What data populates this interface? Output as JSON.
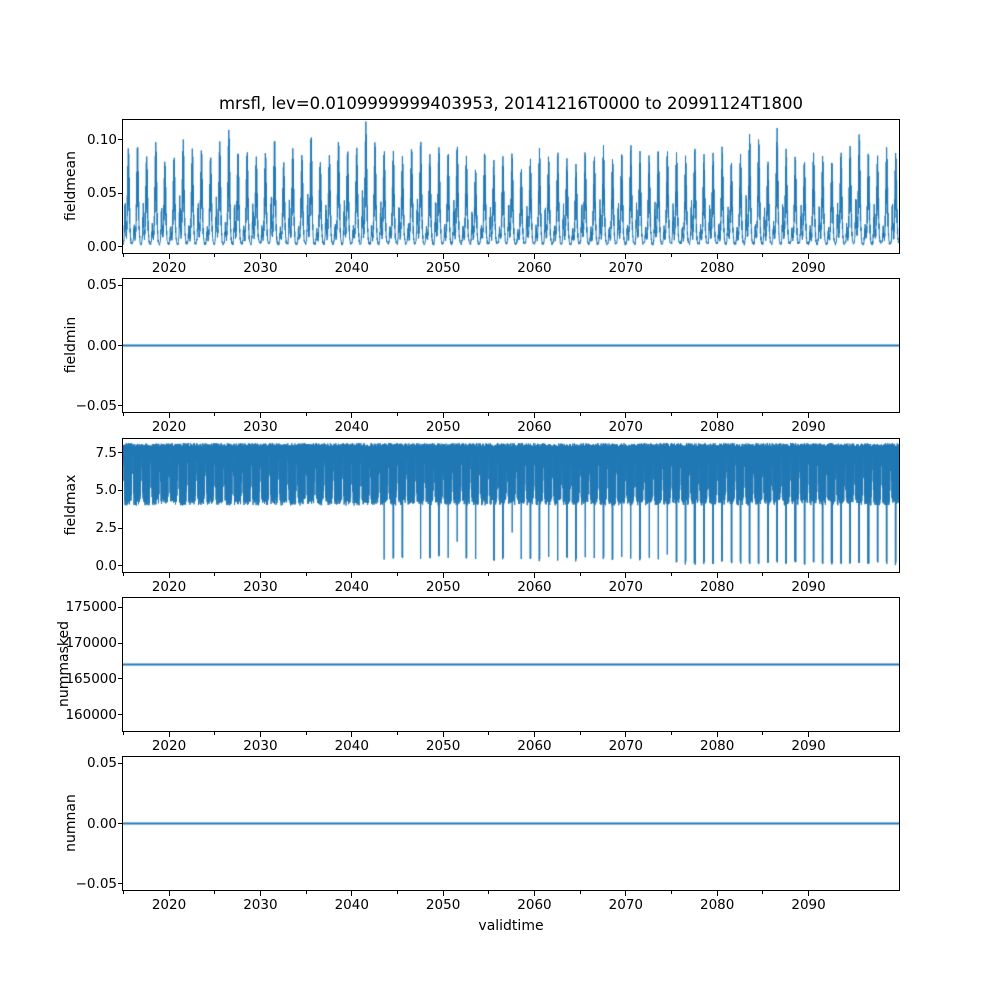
{
  "title": "mrsfl, lev=0.0109999999403953, 20141216T0000 to 20991124T1800",
  "xlabel": "validtime",
  "background_color": "#ffffff",
  "line_color": "#1f77b4",
  "x_axis": {
    "label": "validtime",
    "start_time": "20141216T0000",
    "end_time": "20991124T1800",
    "start_year_frac": 2014.96,
    "end_year_frac": 2099.9,
    "major_tick_values": [
      2020,
      2030,
      2040,
      2050,
      2060,
      2070,
      2080,
      2090
    ],
    "major_tick_labels": [
      "2020",
      "2030",
      "2040",
      "2050",
      "2060",
      "2070",
      "2080",
      "2090"
    ],
    "minor_tick_values": [
      2015,
      2025,
      2035,
      2045,
      2055,
      2065,
      2075,
      2085,
      2095
    ]
  },
  "chart_data": [
    {
      "type": "line",
      "name": "fieldmean",
      "ylabel": "fieldmean",
      "color": "#1f77b4",
      "ylim": [
        -0.0057,
        0.1187
      ],
      "ytick_values": [
        0.0,
        0.05,
        0.1
      ],
      "ytick_labels": [
        "0.00",
        "0.05",
        "0.10"
      ],
      "series": {
        "kind": "annual-peaks",
        "description": "Seasonal cycle sampled every ~10 days; each year rises from ~0 to an annual peak and returns to ~0; small noise near zero baseline.",
        "sample_interval_days": 10,
        "baseline": 0.0,
        "annual_peak_start_year": 2015,
        "annual_peaks": [
          0.091,
          0.092,
          0.083,
          0.096,
          0.077,
          0.082,
          0.097,
          0.089,
          0.088,
          0.082,
          0.096,
          0.108,
          0.086,
          0.088,
          0.082,
          0.086,
          0.099,
          0.077,
          0.09,
          0.084,
          0.102,
          0.078,
          0.083,
          0.097,
          0.088,
          0.09,
          0.113,
          0.095,
          0.088,
          0.087,
          0.081,
          0.091,
          0.096,
          0.083,
          0.091,
          0.086,
          0.093,
          0.082,
          0.07,
          0.086,
          0.078,
          0.083,
          0.086,
          0.071,
          0.079,
          0.089,
          0.082,
          0.086,
          0.08,
          0.074,
          0.086,
          0.083,
          0.091,
          0.08,
          0.085,
          0.092,
          0.086,
          0.082,
          0.09,
          0.088,
          0.086,
          0.082,
          0.091,
          0.084,
          0.086,
          0.091,
          0.078,
          0.084,
          0.103,
          0.099,
          0.077,
          0.107,
          0.088,
          0.083,
          0.078,
          0.086,
          0.083,
          0.079,
          0.086,
          0.091,
          0.102,
          0.086,
          0.082,
          0.09,
          0.086
        ]
      }
    },
    {
      "type": "line",
      "name": "fieldmin",
      "ylabel": "fieldmin",
      "color": "#1f77b4",
      "ylim": [
        -0.055,
        0.055
      ],
      "ytick_values": [
        -0.05,
        0.0,
        0.05
      ],
      "ytick_labels": [
        "−0.05",
        "0.00",
        "0.05"
      ],
      "series": {
        "kind": "constant",
        "value": 0.0
      }
    },
    {
      "type": "line",
      "name": "fieldmax",
      "ylabel": "fieldmax",
      "color": "#1f77b4",
      "ylim": [
        -0.4,
        8.4
      ],
      "ytick_values": [
        0.0,
        2.5,
        5.0,
        7.5
      ],
      "ytick_labels": [
        "0.0",
        "2.5",
        "5.0",
        "7.5"
      ],
      "series": {
        "kind": "oscillating-band",
        "description": "Dense oscillation between ~4 and ~8 all years; narrow annual deep dips: to ~0.3-0.5 from 2043-2074, to ~0.05 from 2075 on.",
        "sample_interval_days": 10,
        "band_top": 8.0,
        "band_bottom": 4.0,
        "annual_min_start_year": 2015,
        "annual_minima": [
          4.0,
          3.9,
          4.0,
          4.1,
          4.0,
          3.9,
          4.0,
          4.0,
          3.9,
          4.1,
          4.0,
          4.0,
          3.9,
          4.0,
          4.1,
          4.0,
          3.9,
          4.0,
          4.0,
          4.1,
          3.9,
          4.0,
          4.0,
          3.9,
          4.0,
          4.1,
          4.0,
          3.9,
          0.4,
          0.35,
          0.4,
          4.0,
          0.35,
          0.4,
          0.5,
          0.4,
          1.5,
          0.35,
          0.4,
          4.0,
          0.3,
          0.35,
          2.2,
          0.3,
          0.35,
          0.3,
          0.4,
          0.3,
          0.35,
          0.3,
          0.4,
          0.3,
          0.35,
          0.3,
          0.4,
          0.3,
          0.35,
          0.3,
          0.35,
          0.6,
          0.05,
          0.08,
          0.05,
          0.1,
          0.05,
          0.08,
          0.05,
          0.1,
          0.05,
          0.08,
          0.05,
          0.1,
          0.05,
          0.08,
          0.05,
          0.1,
          0.05,
          0.08,
          0.05,
          0.1,
          0.05,
          0.08,
          0.05,
          0.1,
          0.05
        ]
      }
    },
    {
      "type": "line",
      "name": "nummasked",
      "ylabel": "nummasked",
      "color": "#1f77b4",
      "ylim": [
        157700,
        176300
      ],
      "ytick_values": [
        160000,
        165000,
        170000,
        175000
      ],
      "ytick_labels": [
        "160000",
        "165000",
        "170000",
        "175000"
      ],
      "series": {
        "kind": "constant",
        "value": 167000
      }
    },
    {
      "type": "line",
      "name": "numnan",
      "ylabel": "numnan",
      "color": "#1f77b4",
      "ylim": [
        -0.055,
        0.055
      ],
      "ytick_values": [
        -0.05,
        0.0,
        0.05
      ],
      "ytick_labels": [
        "−0.05",
        "0.00",
        "0.05"
      ],
      "series": {
        "kind": "constant",
        "value": 0.0
      }
    }
  ]
}
